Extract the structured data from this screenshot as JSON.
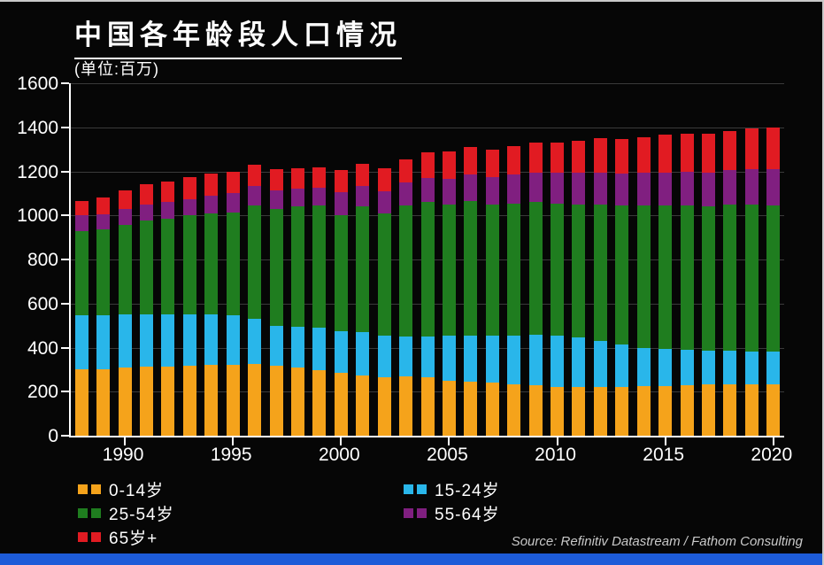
{
  "header": {
    "title": "中国各年龄段人口情况",
    "subtitle": "(单位:百万)"
  },
  "source": "Source: Refinitiv Datastream / Fathom Consulting",
  "colors": {
    "background": "#060606",
    "axis": "#ffffff",
    "grid": "#3a3a3a",
    "text": "#ffffff",
    "source_text": "#c9c9c9",
    "footer_strip": "#1d5bd8",
    "orange": "#f5a31b",
    "cyan": "#29b6ea",
    "green": "#1f7d1f",
    "purple": "#801f80",
    "red": "#e11b22"
  },
  "chart_data": {
    "type": "bar",
    "stacked": true,
    "title": "中国各年龄段人口情况",
    "unit_label": "(单位:百万)",
    "xlabel": "",
    "ylabel": "",
    "ylim": [
      0,
      1600
    ],
    "y_ticks": [
      0,
      200,
      400,
      600,
      800,
      1000,
      1200,
      1400,
      1600
    ],
    "grid": true,
    "legend_position": "bottom",
    "x": [
      1988,
      1989,
      1990,
      1991,
      1992,
      1993,
      1994,
      1995,
      1996,
      1997,
      1998,
      1999,
      2000,
      2001,
      2002,
      2003,
      2004,
      2005,
      2006,
      2007,
      2008,
      2009,
      2010,
      2011,
      2012,
      2013,
      2014,
      2015,
      2016,
      2017,
      2018,
      2019,
      2020
    ],
    "x_tick_labels": [
      "1990",
      "1995",
      "2000",
      "2005",
      "2010",
      "2015",
      "2020"
    ],
    "series": [
      {
        "name": "0-14岁",
        "color": "#f5a31b",
        "values": [
          300,
          300,
          310,
          312,
          315,
          318,
          320,
          322,
          325,
          318,
          310,
          298,
          285,
          275,
          265,
          270,
          265,
          250,
          245,
          240,
          235,
          230,
          222,
          222,
          222,
          223,
          225,
          227,
          230,
          233,
          235,
          235,
          235
        ]
      },
      {
        "name": "15-24岁",
        "color": "#29b6ea",
        "values": [
          245,
          245,
          240,
          238,
          235,
          232,
          230,
          223,
          205,
          182,
          185,
          192,
          190,
          195,
          190,
          180,
          185,
          205,
          210,
          215,
          220,
          230,
          233,
          223,
          208,
          192,
          175,
          168,
          160,
          152,
          150,
          147,
          145
        ]
      },
      {
        "name": "25-54岁",
        "color": "#1f7d1f",
        "values": [
          385,
          390,
          405,
          425,
          435,
          450,
          460,
          470,
          515,
          530,
          545,
          555,
          525,
          570,
          555,
          595,
          610,
          595,
          610,
          595,
          600,
          600,
          600,
          605,
          620,
          630,
          645,
          650,
          655,
          655,
          665,
          668,
          665
        ]
      },
      {
        "name": "55-64岁",
        "color": "#801f80",
        "values": [
          70,
          70,
          75,
          75,
          75,
          75,
          80,
          85,
          90,
          85,
          80,
          80,
          105,
          95,
          100,
          105,
          110,
          115,
          120,
          125,
          130,
          135,
          140,
          145,
          145,
          145,
          150,
          150,
          155,
          155,
          155,
          160,
          165
        ]
      },
      {
        "name": "65岁+",
        "color": "#e11b22",
        "values": [
          65,
          75,
          85,
          90,
          95,
          100,
          100,
          100,
          95,
          95,
          95,
          95,
          100,
          100,
          105,
          105,
          115,
          125,
          125,
          125,
          130,
          135,
          135,
          145,
          155,
          155,
          160,
          170,
          170,
          175,
          180,
          185,
          190
        ]
      }
    ],
    "legend_columns": [
      [
        0,
        2,
        4
      ],
      [
        1,
        3
      ]
    ]
  }
}
